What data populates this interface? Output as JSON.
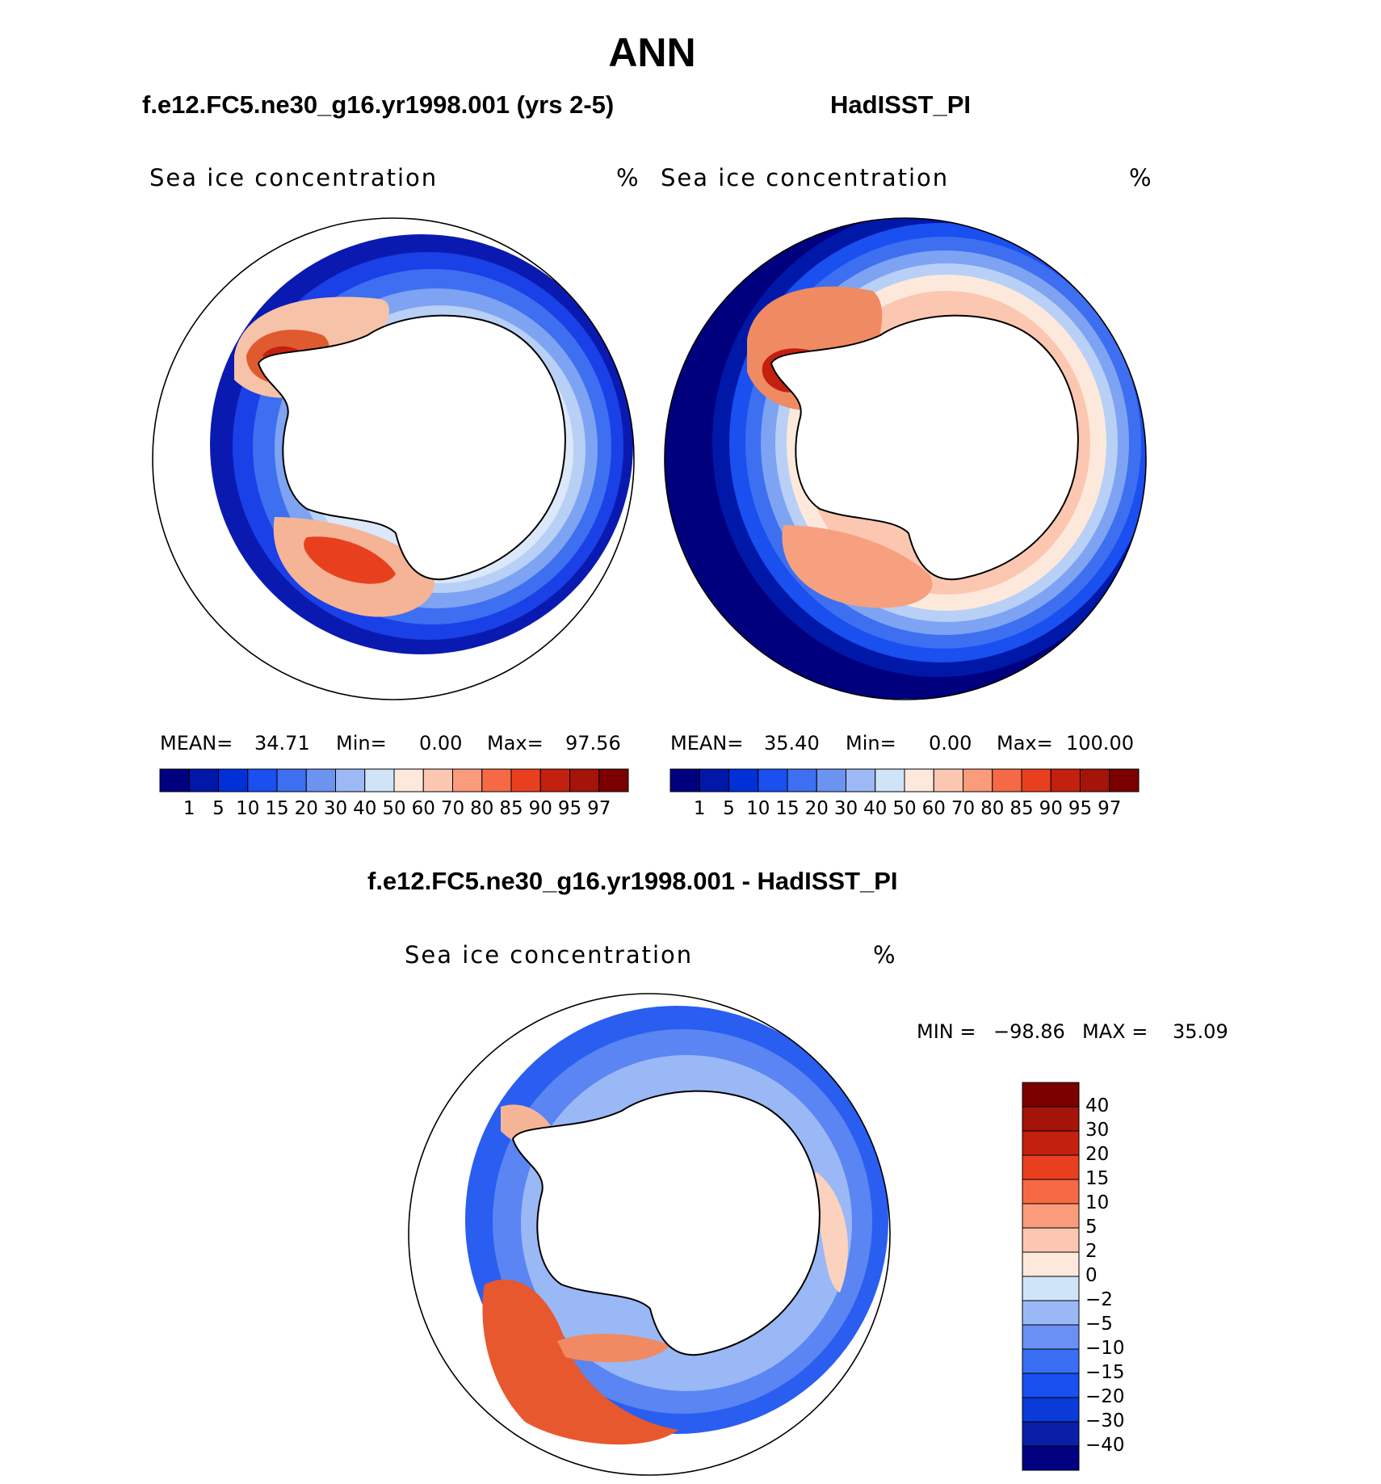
{
  "header": {
    "title": "ANN",
    "left_subtitle": "f.e12.FC5.ne30_g16.yr1998.001 (yrs 2-5)",
    "right_subtitle": "HadISST_PI",
    "diff_subtitle": "f.e12.FC5.ne30_g16.yr1998.001 - HadISST_PI"
  },
  "panels": [
    {
      "id": "model",
      "variable": "Sea ice concentration",
      "units": "%",
      "mean_label": "MEAN=",
      "mean": "34.71",
      "min_label": "Min=",
      "min": "0.00",
      "max_label": "Max=",
      "max": "97.56"
    },
    {
      "id": "obs",
      "variable": "Sea ice concentration",
      "units": "%",
      "mean_label": "MEAN=",
      "mean": "35.40",
      "min_label": "Min=",
      "min": "0.00",
      "max_label": "Max=",
      "max": "100.00"
    },
    {
      "id": "diff",
      "variable": "Sea ice concentration",
      "units": "%",
      "min_label": "MIN =",
      "min": "−98.86",
      "max_label": "MAX =",
      "max": "35.09"
    }
  ],
  "chart_data": [
    {
      "type": "heatmap",
      "title": "Sea ice concentration",
      "projection": "south polar stereographic",
      "units": "%",
      "mean": 34.71,
      "min": 0.0,
      "max": 97.56,
      "levels": [
        1,
        5,
        10,
        15,
        20,
        30,
        40,
        50,
        60,
        70,
        80,
        85,
        90,
        95,
        97
      ],
      "level_labels": [
        "1",
        "5",
        "10",
        "15",
        "20",
        "30",
        "40",
        "50",
        "60",
        "70",
        "80",
        "85",
        "90",
        "95",
        "97"
      ],
      "colors": [
        "#00007f",
        "#0018a8",
        "#0030d8",
        "#1a4ff0",
        "#3d6ff0",
        "#6b93f0",
        "#9db9f5",
        "#cfe4f8",
        "#fde9dc",
        "#fcc7b1",
        "#fa9b7c",
        "#f56a45",
        "#e8401e",
        "#c42010",
        "#a41408",
        "#7a0000"
      ]
    },
    {
      "type": "heatmap",
      "title": "Sea ice concentration",
      "projection": "south polar stereographic",
      "units": "%",
      "mean": 35.4,
      "min": 0.0,
      "max": 100.0,
      "levels": [
        1,
        5,
        10,
        15,
        20,
        30,
        40,
        50,
        60,
        70,
        80,
        85,
        90,
        95,
        97
      ],
      "level_labels": [
        "1",
        "5",
        "10",
        "15",
        "20",
        "30",
        "40",
        "50",
        "60",
        "70",
        "80",
        "85",
        "90",
        "95",
        "97"
      ],
      "colors": [
        "#00007f",
        "#0018a8",
        "#0030d8",
        "#1a4ff0",
        "#3d6ff0",
        "#6b93f0",
        "#9db9f5",
        "#cfe4f8",
        "#fde9dc",
        "#fcc7b1",
        "#fa9b7c",
        "#f56a45",
        "#e8401e",
        "#c42010",
        "#a41408",
        "#7a0000"
      ]
    },
    {
      "type": "heatmap",
      "title": "Sea ice concentration",
      "projection": "south polar stereographic",
      "units": "%",
      "min": -98.86,
      "max": 35.09,
      "levels": [
        -40,
        -30,
        -20,
        -15,
        -10,
        -5,
        -2,
        0,
        2,
        5,
        10,
        15,
        20,
        30,
        40
      ],
      "level_labels": [
        "−40",
        "−30",
        "−20",
        "−15",
        "−10",
        "−5",
        "−2",
        "0",
        "2",
        "5",
        "10",
        "15",
        "20",
        "30",
        "40"
      ],
      "colors": [
        "#000080",
        "#0a1ea8",
        "#0a3ad8",
        "#1a50f0",
        "#3a6ef5",
        "#6a90f5",
        "#9ab8f5",
        "#d0e4f8",
        "#fde9dc",
        "#fcc7b1",
        "#fa9b7c",
        "#f56a45",
        "#e8401e",
        "#c42010",
        "#a41408",
        "#7a0000"
      ]
    }
  ]
}
